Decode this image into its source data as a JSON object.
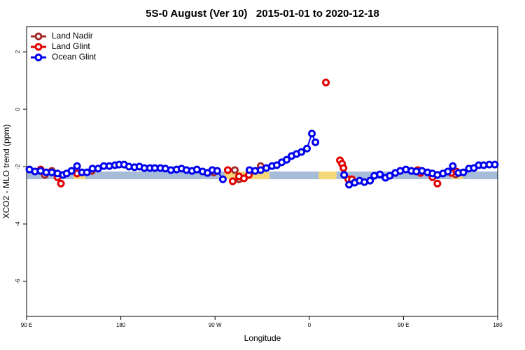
{
  "chart_data": {
    "type": "scatter",
    "title": "5S-0 August (Ver 10)   2015-01-01 to 2020-12-18",
    "x_label": "Longitude",
    "y_label": "XCO2 - MLO trend (ppm)",
    "xlim": [
      90,
      540
    ],
    "ylim": [
      -7.22,
      2.88
    ],
    "xticks": [
      {
        "value": 90,
        "label": "90 E"
      },
      180,
      {
        "value": 270,
        "label": "90 W"
      },
      {
        "value": 360,
        "label": "0"
      },
      {
        "value": 450,
        "label": "90 E"
      },
      {
        "value": 540,
        "label": "180"
      }
    ],
    "yticks": [
      2,
      0,
      -2,
      -4,
      -6
    ],
    "legend": "top-left",
    "band": {
      "ylim": [
        -2.44,
        -2.17
      ],
      "color": "#a7bcd9",
      "segments": [
        {
          "xlim": [
            135,
            146
          ],
          "color": "#f5d77a"
        },
        {
          "xlim": [
            279,
            322
          ],
          "color": "#f5d77a"
        },
        {
          "xlim": [
            369,
            386
          ],
          "color": "#f5d77a"
        },
        {
          "xlim": [
            496,
            507
          ],
          "color": "#f5d77a"
        }
      ]
    },
    "series": [
      {
        "name": "Land Nadir",
        "color": "#a52a2a",
        "line": false,
        "x": [
          107.4,
          114.1,
          152.3,
          268.8,
          288.9,
          292.9,
          313.6,
          467.0,
          477.0,
          499.8
        ],
        "values": [
          -2.29,
          -2.15,
          -2.15,
          -2.2,
          -2.12,
          -2.44,
          -1.98,
          -2.15,
          -2.24,
          -2.27
        ]
      },
      {
        "name": "Land Glint",
        "color": "#e00000",
        "line": false,
        "x": [
          103.4,
          119.5,
          122.8,
          138.2,
          282.2,
          286.9,
          292.9,
          297.6,
          302.3,
          375.9,
          389.3,
          391.3,
          392.7,
          397.3,
          400.7,
          463.6,
          466.3,
          477.7,
          482.4,
          495.8,
          500.5
        ],
        "values": [
          -2.1,
          -2.37,
          -2.59,
          -2.24,
          -2.12,
          -2.51,
          -2.34,
          -2.41,
          -2.29,
          0.93,
          -1.78,
          -1.9,
          -2.05,
          -2.44,
          -2.44,
          -2.12,
          -2.22,
          -2.37,
          -2.59,
          -2.22,
          -2.17
        ]
      },
      {
        "name": "Ocean Glint",
        "color": "#0000ee",
        "line": true,
        "x": [
          92.7,
          98.0,
          103.4,
          108.7,
          114.1,
          119.5,
          124.8,
          128.2,
          132.9,
          138.2,
          142.9,
          147.6,
          152.9,
          158.3,
          163.7,
          169.0,
          174.4,
          178.4,
          183.1,
          187.8,
          193.1,
          197.8,
          202.5,
          207.8,
          212.5,
          217.9,
          222.6,
          227.9,
          233.3,
          238.0,
          242.7,
          248.0,
          252.7,
          258.1,
          262.8,
          267.4,
          272.1,
          277.5,
          null,
          302.9,
          308.3,
          313.6,
          319.0,
          324.4,
          329.0,
          333.7,
          338.4,
          343.1,
          347.8,
          352.5,
          357.8,
          362.5,
          365.9,
          null,
          393.3,
          398.0,
          403.4,
          408.1,
          412.7,
          418.1,
          422.1,
          427.5,
          432.8,
          436.9,
          442.2,
          446.9,
          452.3,
          457.6,
          462.3,
          467.7,
          473.0,
          477.7,
          482.4,
          487.7,
          492.4,
          497.1,
          502.5,
          507.2,
          512.5,
          517.2,
          521.9,
          526.6,
          532.0,
          537.3
        ],
        "values": [
          -2.1,
          -2.17,
          -2.15,
          -2.2,
          -2.2,
          -2.24,
          -2.29,
          -2.24,
          -2.15,
          -1.98,
          -2.2,
          -2.2,
          -2.07,
          -2.07,
          -1.98,
          -1.98,
          -1.95,
          -1.93,
          -1.93,
          -2.0,
          -2.02,
          -2.0,
          -2.05,
          -2.05,
          -2.05,
          -2.05,
          -2.07,
          -2.12,
          -2.1,
          -2.07,
          -2.12,
          -2.15,
          -2.1,
          -2.17,
          -2.22,
          -2.12,
          -2.15,
          -2.44,
          null,
          -2.12,
          -2.15,
          -2.12,
          -2.05,
          -1.98,
          -1.95,
          -1.85,
          -1.76,
          -1.63,
          -1.56,
          -1.49,
          -1.37,
          -0.85,
          -1.15,
          null,
          -2.29,
          -2.63,
          -2.56,
          -2.49,
          -2.54,
          -2.49,
          -2.32,
          -2.27,
          -2.39,
          -2.32,
          -2.22,
          -2.15,
          -2.1,
          -2.15,
          -2.17,
          -2.15,
          -2.2,
          -2.24,
          -2.29,
          -2.24,
          -2.17,
          -1.98,
          -2.22,
          -2.2,
          -2.07,
          -2.05,
          -1.95,
          -1.95,
          -1.93,
          -1.93
        ]
      }
    ]
  }
}
